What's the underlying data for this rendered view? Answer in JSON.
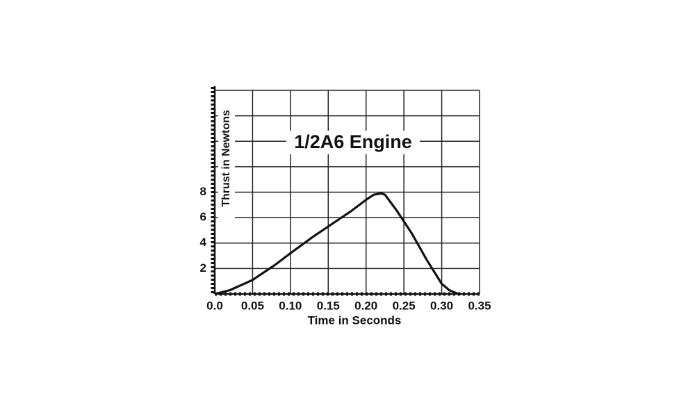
{
  "chart_data": {
    "type": "line",
    "title": "1/2A6 Engine",
    "x_label": "Time in Seconds",
    "y_label": "Thrust in Newtons",
    "x": [
      0,
      0.02,
      0.05,
      0.08,
      0.1,
      0.13,
      0.15,
      0.18,
      0.2,
      0.21,
      0.22,
      0.225,
      0.24,
      0.26,
      0.28,
      0.3,
      0.31,
      0.32,
      0.325
    ],
    "values": [
      0,
      0.3,
      1.1,
      2.3,
      3.2,
      4.5,
      5.3,
      6.5,
      7.4,
      7.8,
      7.9,
      7.8,
      6.6,
      4.8,
      2.7,
      0.8,
      0.3,
      0.05,
      0
    ],
    "color": "#111111",
    "xlim": [
      0,
      0.35
    ],
    "xticks": [
      {
        "value": 0,
        "label": "0.0"
      },
      0.05,
      {
        "value": 0.1,
        "label": "0.10"
      },
      0.15,
      {
        "value": 0.2,
        "label": "0.20"
      },
      0.25,
      {
        "value": 0.3,
        "label": "0.30"
      },
      0.35
    ],
    "ylim": [
      0,
      16
    ],
    "yticks": [
      2,
      4,
      6,
      8
    ],
    "ygrid": [
      10,
      12,
      14,
      16
    ],
    "grid": true
  }
}
